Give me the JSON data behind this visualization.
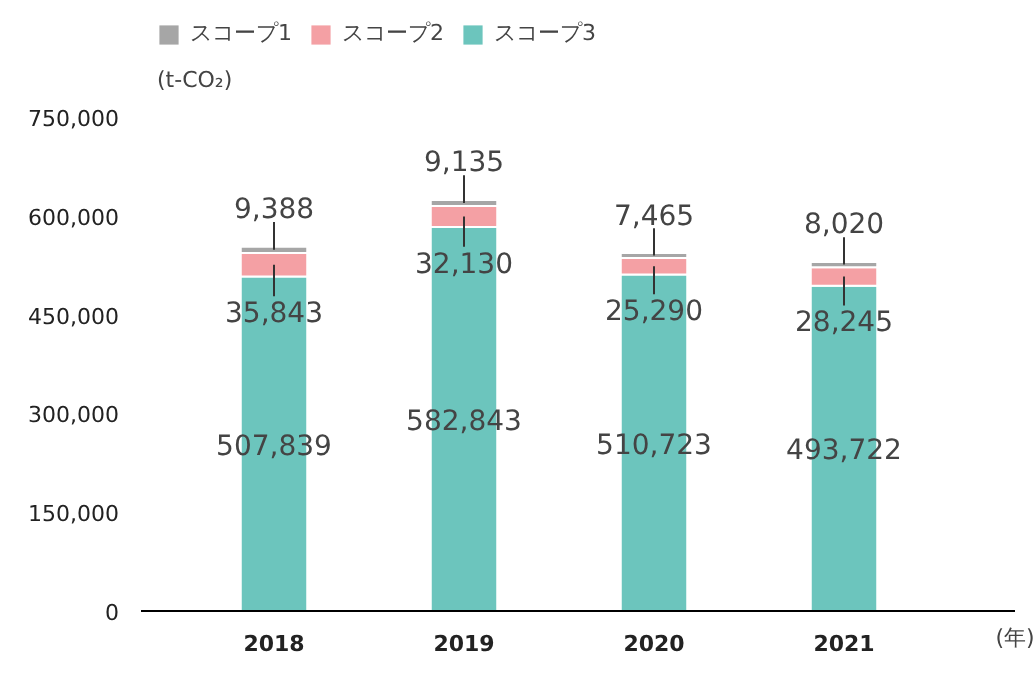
{
  "chart_data": {
    "type": "bar",
    "stacked": true,
    "categories": [
      "2018",
      "2019",
      "2020",
      "2021"
    ],
    "series": [
      {
        "name": "スコープ3",
        "color": "#6cc5bd",
        "values": [
          507839,
          582843,
          510723,
          493722
        ],
        "value_labels": [
          "507,839",
          "582,843",
          "510,723",
          "493,722"
        ]
      },
      {
        "name": "スコープ2",
        "color": "#f4a0a4",
        "values": [
          35843,
          32130,
          25290,
          28245
        ],
        "value_labels": [
          "35,843",
          "32,130",
          "25,290",
          "28,245"
        ]
      },
      {
        "name": "スコープ1",
        "color": "#a6a6a6",
        "values": [
          9388,
          9135,
          7465,
          8020
        ],
        "value_labels": [
          "9,388",
          "9,135",
          "7,465",
          "8,020"
        ]
      }
    ],
    "ylabel": "(t-CO₂)",
    "xlabel": "(年)",
    "ylim": [
      0,
      750000
    ],
    "yticks": [
      {
        "value": 0,
        "label": "0"
      },
      {
        "value": 150000,
        "label": "150,000"
      },
      {
        "value": 300000,
        "label": "300,000"
      },
      {
        "value": 450000,
        "label": "450,000"
      },
      {
        "value": 600000,
        "label": "600,000"
      },
      {
        "value": 750000,
        "label": "750,000"
      }
    ],
    "legend": "top left",
    "grid": false
  }
}
